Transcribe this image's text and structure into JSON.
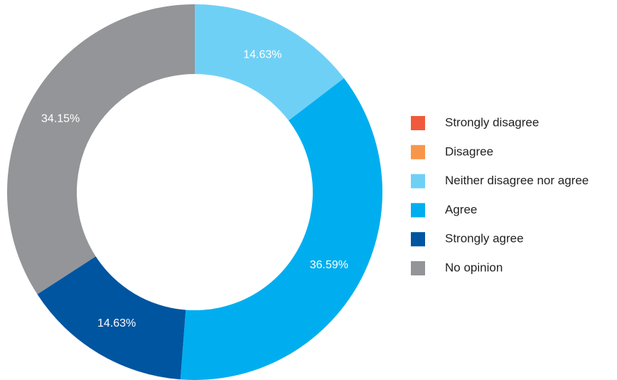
{
  "chart_data": {
    "type": "pie",
    "variant": "donut",
    "title": "",
    "legend_position": "right",
    "slices": [
      {
        "name": "Strongly disagree",
        "value": 0,
        "label": "",
        "color": "#f05a3c"
      },
      {
        "name": "Disagree",
        "value": 0,
        "label": "",
        "color": "#f7964a"
      },
      {
        "name": "Neither disagree nor agree",
        "value": 14.63,
        "label": "14.63%",
        "color": "#6fd0f6"
      },
      {
        "name": "Agree",
        "value": 36.59,
        "label": "36.59%",
        "color": "#00aeef"
      },
      {
        "name": "Strongly agree",
        "value": 14.63,
        "label": "14.63%",
        "color": "#0055a0"
      },
      {
        "name": "No opinion",
        "value": 34.15,
        "label": "34.15%",
        "color": "#939598"
      }
    ]
  }
}
